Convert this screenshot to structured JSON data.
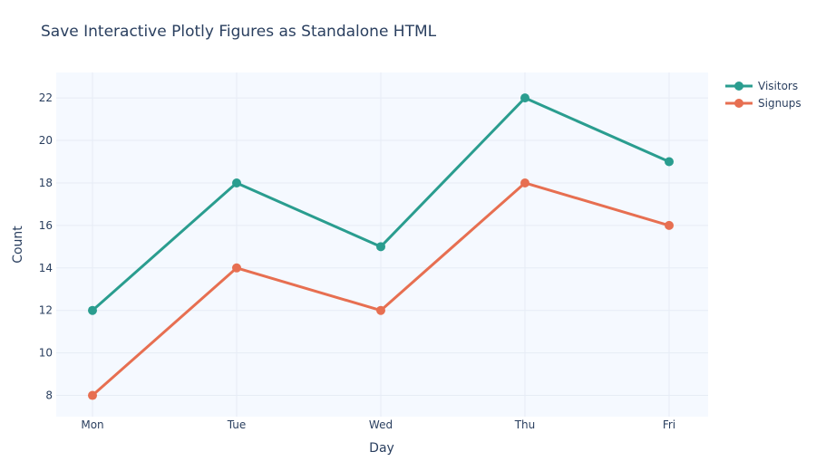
{
  "colors": {
    "plot_background": "#f5f9ff",
    "gridline": "#e6ecf5",
    "text": "#2a3f5f"
  },
  "chart_data": {
    "type": "line",
    "title": "Save Interactive Plotly Figures as Standalone HTML",
    "xlabel": "Day",
    "ylabel": "Count",
    "categories": [
      "Mon",
      "Tue",
      "Wed",
      "Thu",
      "Fri"
    ],
    "ylim": [
      7,
      23.2
    ],
    "yticks": [
      8,
      10,
      12,
      14,
      16,
      18,
      20,
      22
    ],
    "grid": true,
    "legend_position": "top-right",
    "series": [
      {
        "name": "Visitors",
        "color": "#2a9d8f",
        "values": [
          12,
          18,
          15,
          22,
          19
        ]
      },
      {
        "name": "Signups",
        "color": "#e76f51",
        "values": [
          8,
          14,
          12,
          18,
          16
        ]
      }
    ]
  }
}
